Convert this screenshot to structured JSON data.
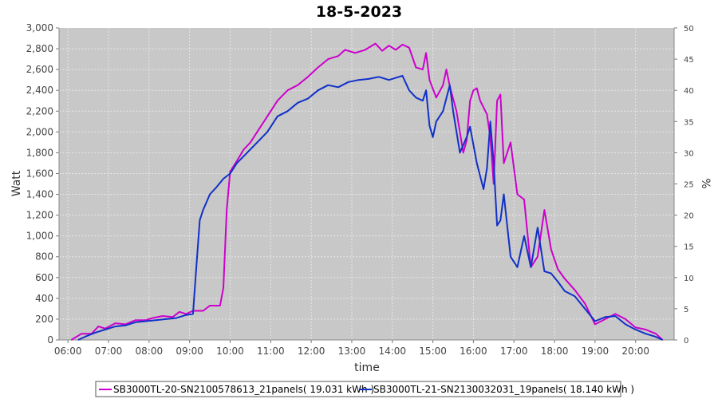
{
  "chart_data": {
    "type": "line",
    "title": "18-5-2023",
    "xlabel": "time",
    "ylabel": "Watt",
    "y2label": "%",
    "x_ticks": [
      "06:00",
      "07:00",
      "08:00",
      "09:00",
      "10:00",
      "11:00",
      "12:00",
      "13:00",
      "14:00",
      "15:00",
      "16:00",
      "17:00",
      "18:00",
      "19:00",
      "20:00"
    ],
    "y_ticks": [
      "0",
      "200",
      "400",
      "600",
      "800",
      "1,000",
      "1,200",
      "1,400",
      "1,600",
      "1,800",
      "2,000",
      "2,200",
      "2,400",
      "2,600",
      "2,800",
      "3,000"
    ],
    "y2_ticks": [
      "0",
      "5",
      "10",
      "15",
      "20",
      "25",
      "30",
      "35",
      "40",
      "45",
      "50"
    ],
    "xlim_hours": [
      5.78,
      20.95
    ],
    "ylim": [
      0,
      3000
    ],
    "y2lim": [
      0,
      50
    ],
    "grid": true,
    "plot_background": "#c8c8c8",
    "grid_color": "#e6e6e6",
    "series": [
      {
        "name": "SB3000TL-20-SN2100578613_21panels( 19.031 kWh )",
        "color": "#cc00cc",
        "points": [
          [
            "06:05",
            0
          ],
          [
            "06:20",
            60
          ],
          [
            "06:35",
            60
          ],
          [
            "06:45",
            130
          ],
          [
            "06:55",
            110
          ],
          [
            "07:10",
            160
          ],
          [
            "07:25",
            150
          ],
          [
            "07:40",
            190
          ],
          [
            "07:55",
            190
          ],
          [
            "08:05",
            210
          ],
          [
            "08:20",
            230
          ],
          [
            "08:35",
            220
          ],
          [
            "08:45",
            270
          ],
          [
            "08:55",
            250
          ],
          [
            "09:05",
            280
          ],
          [
            "09:20",
            280
          ],
          [
            "09:30",
            330
          ],
          [
            "09:45",
            330
          ],
          [
            "09:50",
            500
          ],
          [
            "09:55",
            1250
          ],
          [
            "10:00",
            1620
          ],
          [
            "10:10",
            1720
          ],
          [
            "10:20",
            1830
          ],
          [
            "10:30",
            1900
          ],
          [
            "10:40",
            2000
          ],
          [
            "10:55",
            2150
          ],
          [
            "11:10",
            2300
          ],
          [
            "11:25",
            2400
          ],
          [
            "11:40",
            2450
          ],
          [
            "11:55",
            2530
          ],
          [
            "12:10",
            2620
          ],
          [
            "12:25",
            2700
          ],
          [
            "12:40",
            2730
          ],
          [
            "12:50",
            2790
          ],
          [
            "13:05",
            2760
          ],
          [
            "13:20",
            2790
          ],
          [
            "13:35",
            2850
          ],
          [
            "13:45",
            2780
          ],
          [
            "13:55",
            2830
          ],
          [
            "14:05",
            2790
          ],
          [
            "14:15",
            2840
          ],
          [
            "14:25",
            2810
          ],
          [
            "14:35",
            2620
          ],
          [
            "14:45",
            2600
          ],
          [
            "14:50",
            2760
          ],
          [
            "14:55",
            2500
          ],
          [
            "15:05",
            2330
          ],
          [
            "15:15",
            2450
          ],
          [
            "15:20",
            2600
          ],
          [
            "15:25",
            2440
          ],
          [
            "15:35",
            2200
          ],
          [
            "15:45",
            1800
          ],
          [
            "15:50",
            1920
          ],
          [
            "15:55",
            2300
          ],
          [
            "16:00",
            2400
          ],
          [
            "16:05",
            2420
          ],
          [
            "16:10",
            2300
          ],
          [
            "16:20",
            2170
          ],
          [
            "16:25",
            1950
          ],
          [
            "16:30",
            1500
          ],
          [
            "16:35",
            2300
          ],
          [
            "16:40",
            2360
          ],
          [
            "16:45",
            1700
          ],
          [
            "16:55",
            1900
          ],
          [
            "17:05",
            1400
          ],
          [
            "17:15",
            1350
          ],
          [
            "17:25",
            700
          ],
          [
            "17:35",
            800
          ],
          [
            "17:45",
            1250
          ],
          [
            "17:55",
            870
          ],
          [
            "18:05",
            680
          ],
          [
            "18:15",
            590
          ],
          [
            "18:30",
            480
          ],
          [
            "18:45",
            350
          ],
          [
            "19:00",
            150
          ],
          [
            "19:15",
            200
          ],
          [
            "19:30",
            250
          ],
          [
            "19:45",
            200
          ],
          [
            "20:00",
            120
          ],
          [
            "20:15",
            100
          ],
          [
            "20:30",
            60
          ],
          [
            "20:40",
            0
          ]
        ]
      },
      {
        "name": "SB3000TL-21-SN2130032031_19panels( 18.140 kWh )",
        "color": "#1030c8",
        "points": [
          [
            "06:15",
            0
          ],
          [
            "06:25",
            30
          ],
          [
            "06:40",
            70
          ],
          [
            "06:55",
            100
          ],
          [
            "07:10",
            130
          ],
          [
            "07:25",
            140
          ],
          [
            "07:40",
            170
          ],
          [
            "07:55",
            180
          ],
          [
            "08:10",
            190
          ],
          [
            "08:25",
            200
          ],
          [
            "08:40",
            210
          ],
          [
            "08:55",
            240
          ],
          [
            "09:05",
            250
          ],
          [
            "09:10",
            700
          ],
          [
            "09:15",
            1150
          ],
          [
            "09:20",
            1250
          ],
          [
            "09:30",
            1400
          ],
          [
            "09:40",
            1470
          ],
          [
            "09:50",
            1550
          ],
          [
            "10:00",
            1600
          ],
          [
            "10:10",
            1700
          ],
          [
            "10:25",
            1800
          ],
          [
            "10:40",
            1900
          ],
          [
            "10:55",
            2000
          ],
          [
            "11:10",
            2150
          ],
          [
            "11:25",
            2200
          ],
          [
            "11:40",
            2280
          ],
          [
            "11:55",
            2320
          ],
          [
            "12:10",
            2400
          ],
          [
            "12:25",
            2450
          ],
          [
            "12:40",
            2430
          ],
          [
            "12:55",
            2480
          ],
          [
            "13:10",
            2500
          ],
          [
            "13:25",
            2510
          ],
          [
            "13:40",
            2530
          ],
          [
            "13:55",
            2500
          ],
          [
            "14:05",
            2520
          ],
          [
            "14:15",
            2540
          ],
          [
            "14:25",
            2400
          ],
          [
            "14:35",
            2330
          ],
          [
            "14:45",
            2300
          ],
          [
            "14:50",
            2400
          ],
          [
            "14:55",
            2060
          ],
          [
            "15:00",
            1950
          ],
          [
            "15:05",
            2100
          ],
          [
            "15:15",
            2200
          ],
          [
            "15:25",
            2450
          ],
          [
            "15:30",
            2200
          ],
          [
            "15:40",
            1800
          ],
          [
            "15:50",
            1950
          ],
          [
            "15:55",
            2050
          ],
          [
            "16:05",
            1700
          ],
          [
            "16:15",
            1450
          ],
          [
            "16:20",
            1650
          ],
          [
            "16:25",
            2100
          ],
          [
            "16:30",
            1700
          ],
          [
            "16:35",
            1100
          ],
          [
            "16:40",
            1150
          ],
          [
            "16:45",
            1400
          ],
          [
            "16:55",
            800
          ],
          [
            "17:05",
            700
          ],
          [
            "17:15",
            1000
          ],
          [
            "17:25",
            700
          ],
          [
            "17:35",
            1080
          ],
          [
            "17:45",
            660
          ],
          [
            "17:55",
            640
          ],
          [
            "18:05",
            560
          ],
          [
            "18:15",
            470
          ],
          [
            "18:30",
            420
          ],
          [
            "18:45",
            300
          ],
          [
            "19:00",
            180
          ],
          [
            "19:15",
            220
          ],
          [
            "19:30",
            230
          ],
          [
            "19:45",
            150
          ],
          [
            "20:00",
            100
          ],
          [
            "20:15",
            60
          ],
          [
            "20:30",
            30
          ],
          [
            "20:40",
            0
          ]
        ]
      }
    ]
  }
}
